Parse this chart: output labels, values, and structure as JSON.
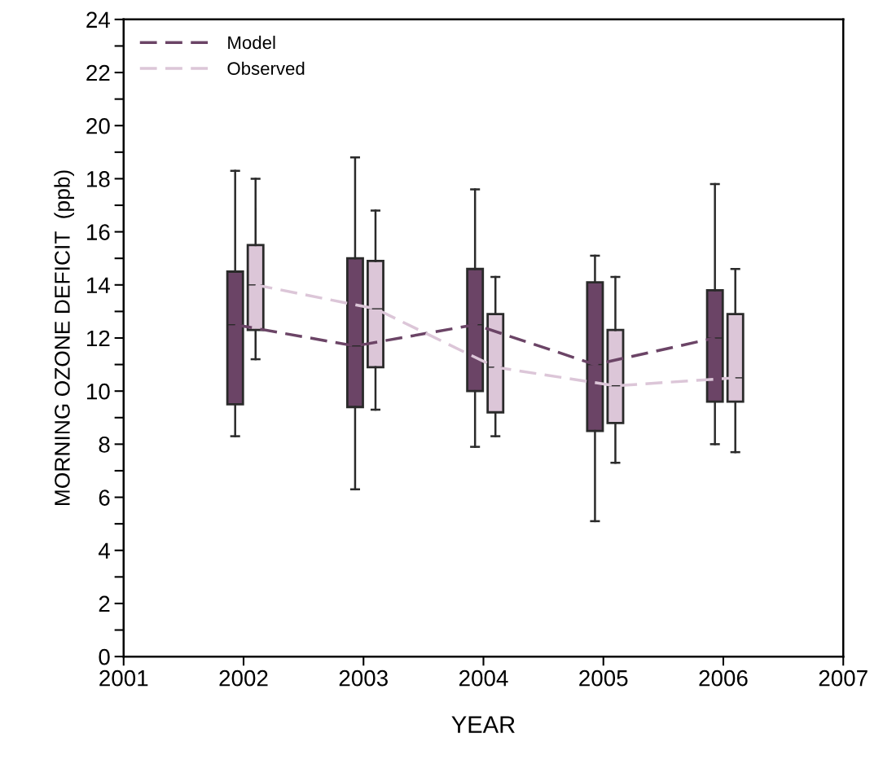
{
  "chart_data": {
    "type": "box",
    "xlabel": "YEAR",
    "ylabel": "MORNING OZONE DEFICIT  (ppb)",
    "xlim": [
      2001,
      2007
    ],
    "xticks": [
      2001,
      2002,
      2003,
      2004,
      2005,
      2006,
      2007
    ],
    "ylim": [
      0,
      24
    ],
    "yticks": [
      0,
      {
        "value": 1,
        "label": null
      },
      2,
      {
        "value": 3,
        "label": null
      },
      4,
      {
        "value": 5,
        "label": null
      },
      6,
      {
        "value": 7,
        "label": null
      },
      8,
      {
        "value": 9,
        "label": null
      },
      10,
      {
        "value": 11,
        "label": null
      },
      12,
      {
        "value": 13,
        "label": null
      },
      14,
      {
        "value": 15,
        "label": null
      },
      16,
      {
        "value": 17,
        "label": null
      },
      18,
      {
        "value": 19,
        "label": null
      },
      20,
      {
        "value": 21,
        "label": null
      },
      22,
      {
        "value": 23,
        "label": null
      },
      24
    ],
    "legend": "top left",
    "line_style": "dashed",
    "grid": false,
    "series": [
      {
        "name": "Model",
        "type": "line",
        "color": "#6b4466",
        "x": [
          2001.93,
          2002.93,
          2003.93,
          2004.93,
          2005.93
        ],
        "values": [
          12.5,
          11.7,
          12.5,
          11.0,
          12.0
        ]
      },
      {
        "name": "Observed",
        "type": "line",
        "color": "#dcc6d8",
        "x": [
          2002.1,
          2003.1,
          2004.1,
          2005.1,
          2006.1
        ],
        "values": [
          14.0,
          13.1,
          10.9,
          10.2,
          10.5
        ]
      },
      {
        "color": "#6b4466",
        "x": [
          2001.93,
          2002.93,
          2003.93,
          2004.93,
          2005.93
        ],
        "boxes": [
          {
            "low": 8.3,
            "q1": 9.5,
            "median": 12.5,
            "q3": 14.5,
            "high": 18.3
          },
          {
            "low": 6.3,
            "q1": 9.4,
            "median": 11.7,
            "q3": 15.0,
            "high": 18.8
          },
          {
            "low": 7.9,
            "q1": 10.0,
            "median": 12.5,
            "q3": 14.6,
            "high": 17.6
          },
          {
            "low": 5.1,
            "q1": 8.5,
            "median": 11.0,
            "q3": 14.1,
            "high": 15.1
          },
          {
            "low": 8.0,
            "q1": 9.6,
            "median": 12.0,
            "q3": 13.8,
            "high": 17.8
          }
        ]
      },
      {
        "color": "#dcc6d8",
        "x": [
          2002.1,
          2003.1,
          2004.1,
          2005.1,
          2006.1
        ],
        "boxes": [
          {
            "low": 11.2,
            "q1": 12.3,
            "median": 14.0,
            "q3": 15.5,
            "high": 18.0
          },
          {
            "low": 9.3,
            "q1": 10.9,
            "median": 13.1,
            "q3": 14.9,
            "high": 16.8
          },
          {
            "low": 8.3,
            "q1": 9.2,
            "median": 10.9,
            "q3": 12.9,
            "high": 14.3
          },
          {
            "low": 7.3,
            "q1": 8.8,
            "median": 10.2,
            "q3": 12.3,
            "high": 14.3
          },
          {
            "low": 7.7,
            "q1": 9.6,
            "median": 10.5,
            "q3": 12.9,
            "high": 14.6
          }
        ]
      }
    ]
  }
}
